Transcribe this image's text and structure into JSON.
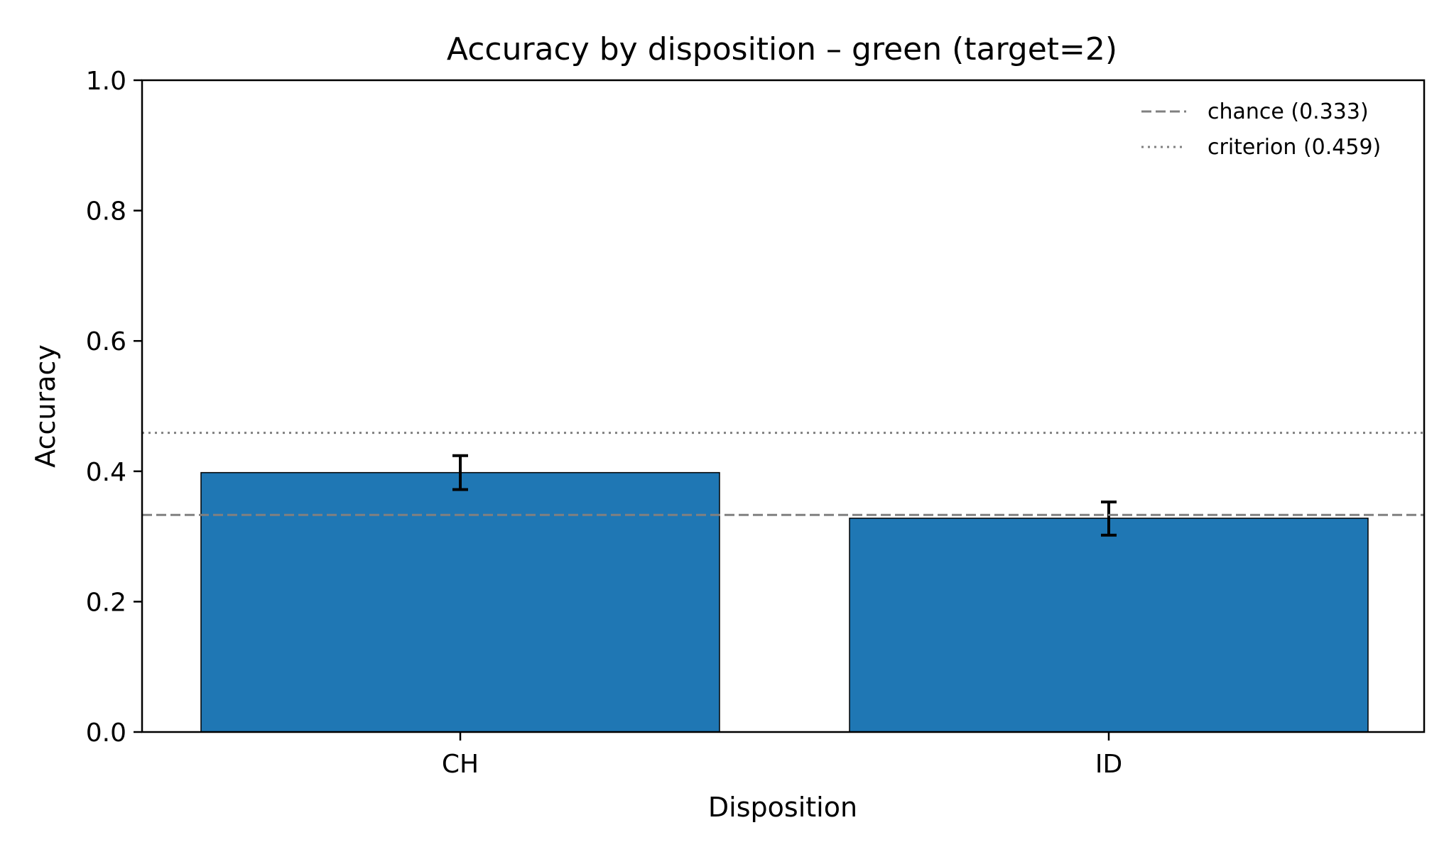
{
  "chart_data": {
    "type": "bar",
    "title": "Accuracy by disposition – green (target=2)",
    "xlabel": "Disposition",
    "ylabel": "Accuracy",
    "categories": [
      "CH",
      "ID"
    ],
    "values": [
      0.398,
      0.328
    ],
    "error_bars": [
      {
        "low": 0.372,
        "high": 0.424
      },
      {
        "low": 0.302,
        "high": 0.353
      }
    ],
    "ylim": [
      0.0,
      1.0
    ],
    "yticks": [
      0.0,
      0.2,
      0.4,
      0.6,
      0.8,
      1.0
    ],
    "ytick_labels": [
      "0.0",
      "0.2",
      "0.4",
      "0.6",
      "0.8",
      "1.0"
    ],
    "reference_lines": [
      {
        "label": "chance (0.333)",
        "value": 0.333,
        "style": "dashed",
        "color": "#808080"
      },
      {
        "label": "criterion (0.459)",
        "value": 0.459,
        "style": "dotted",
        "color": "#808080"
      }
    ],
    "bar_color": "#1f77b4",
    "legend_position": "top-right",
    "grid": false
  }
}
